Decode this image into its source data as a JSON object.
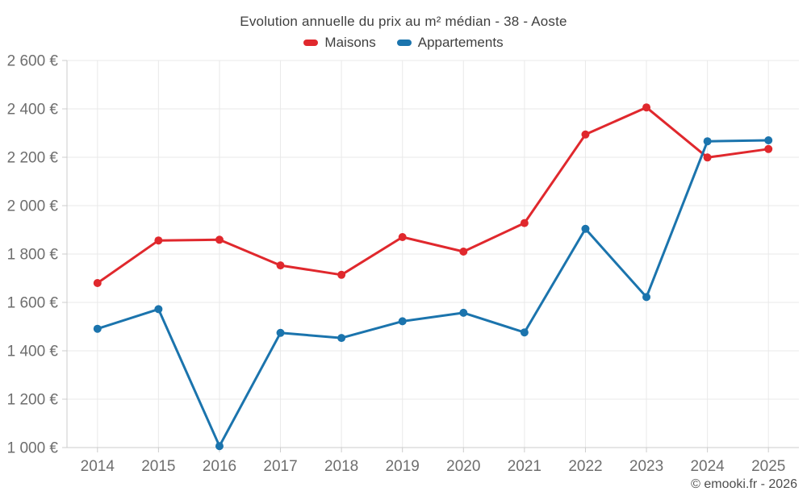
{
  "watermark": "© emooki.fr - 2026",
  "colors": {
    "grid": "#e9e9e9",
    "axis": "#cccccc",
    "tick_text": "#6e6e6e",
    "title_text": "#3f3f3f",
    "watermark_text": "#4d4d4d",
    "maisons": "#e0282d",
    "appartements": "#1b74ad"
  },
  "chart_data": {
    "type": "line",
    "title": "Evolution annuelle du prix au m² médian - 38 - Aoste",
    "categories": [
      "2014",
      "2015",
      "2016",
      "2017",
      "2018",
      "2019",
      "2020",
      "2021",
      "2022",
      "2023",
      "2024",
      "2025"
    ],
    "series": [
      {
        "name": "Maisons",
        "color": "#e0282d",
        "values": [
          1680,
          1856,
          1859,
          1753,
          1714,
          1870,
          1810,
          1928,
          2294,
          2406,
          2199,
          2234
        ]
      },
      {
        "name": "Appartements",
        "color": "#1b74ad",
        "values": [
          1491,
          1572,
          1006,
          1474,
          1453,
          1522,
          1557,
          1476,
          1904,
          1622,
          2266,
          2270
        ]
      }
    ],
    "xlabel": "",
    "ylabel": "",
    "ylim": [
      1000,
      2600
    ],
    "ytick_step": 200,
    "ytick_suffix": " €",
    "grid": true,
    "legend_position": "top",
    "marker": "circle",
    "marker_radius": 5,
    "line_width": 3
  }
}
